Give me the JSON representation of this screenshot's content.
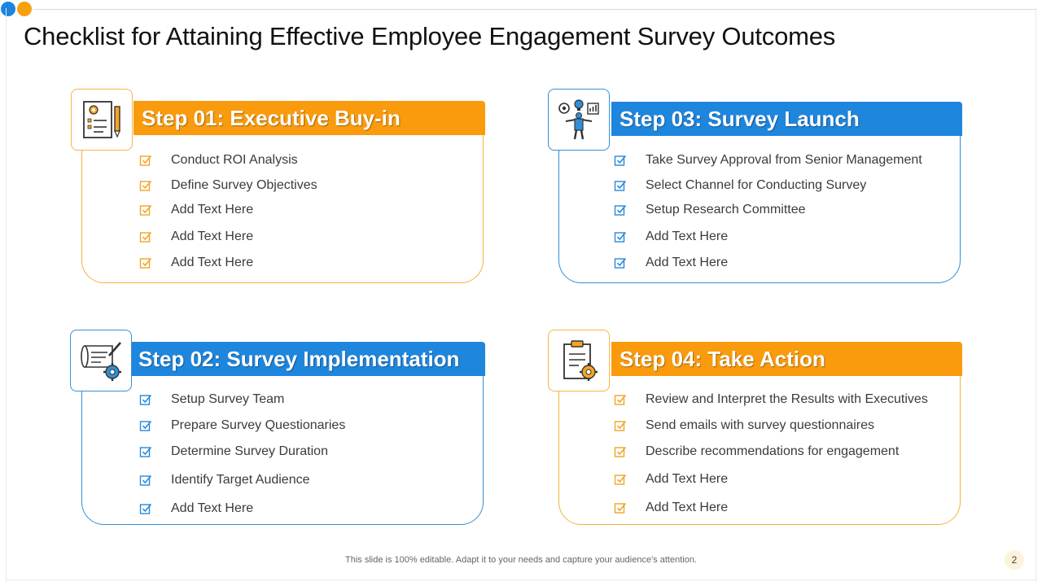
{
  "slide": {
    "title": "Checklist for Attaining Effective Employee Engagement Survey Outcomes",
    "footer": "This slide is 100% editable. Adapt it to your needs and capture your audience's attention.",
    "page_number": "2"
  },
  "colors": {
    "orange": "#f99b0c",
    "blue": "#1f86de"
  },
  "steps": [
    {
      "title": "Step 01: Executive Buy-in",
      "icon": "document-gear-pencil-icon",
      "items": [
        "Conduct ROI Analysis",
        "Define Survey  Objectives",
        "Add Text Here",
        "Add Text Here",
        "Add Text Here"
      ]
    },
    {
      "title": "Step 02: Survey Implementation",
      "icon": "blueprint-gear-icon",
      "items": [
        "Setup Survey  Team",
        "Prepare Survey Questionaries",
        "Determine Survey Duration",
        "Identify  Target Audience",
        "Add Text Here"
      ]
    },
    {
      "title": "Step 03: Survey Launch",
      "icon": "person-ideas-icon",
      "items": [
        "Take Survey  Approval from Senior Management",
        "Select Channel for Conducting Survey",
        "Setup Research Committee",
        "Add Text Here",
        "Add Text Here"
      ]
    },
    {
      "title": "Step 04: Take Action",
      "icon": "clipboard-gear-icon",
      "items": [
        "Review and Interpret the Results with Executives",
        "Send emails with survey questionnaires",
        "Describe recommendations for engagement",
        "Add Text Here",
        "Add Text Here"
      ]
    }
  ]
}
